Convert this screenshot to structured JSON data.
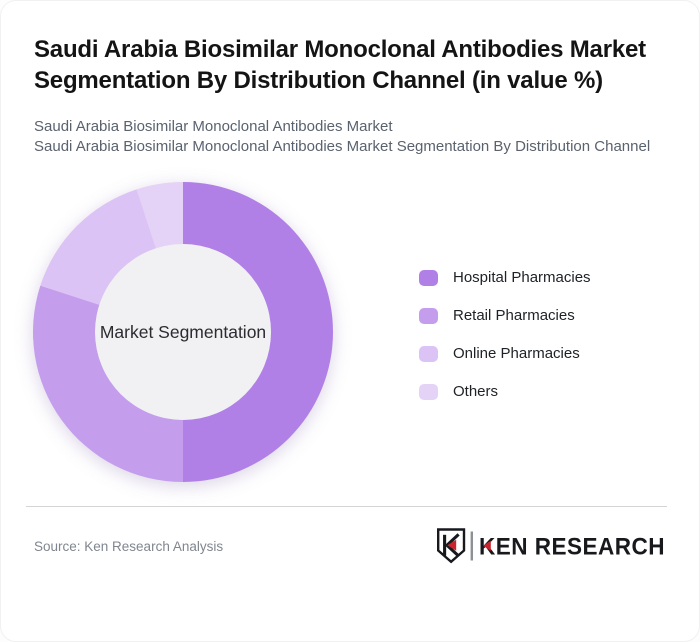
{
  "header": {
    "title": "Saudi Arabia Biosimilar Monoclonal Antibodies Market Segmentation By Distribution Channel (in value %)",
    "subtitle_line1": "Saudi Arabia Biosimilar Monoclonal Antibodies Market",
    "subtitle_line2": "Saudi Arabia Biosimilar Monoclonal Antibodies Market Segmentation By Distribution Channel"
  },
  "chart_data": {
    "type": "pie",
    "variant": "donut",
    "title": "Saudi Arabia Biosimilar Monoclonal Antibodies Market Segmentation By Distribution Channel (in value %)",
    "center_label": "Market Segmentation",
    "categories": [
      "Hospital Pharmacies",
      "Retail Pharmacies",
      "Online Pharmacies",
      "Others"
    ],
    "values": [
      50,
      30,
      15,
      5
    ],
    "unit": "value %",
    "colors": [
      "#b180e7",
      "#c59ded",
      "#dcc3f5",
      "#e4d3f7"
    ],
    "start_angle_deg": 0,
    "direction": "clockwise",
    "inner_radius_ratio": 0.585,
    "center_fill": "#f1f1f3",
    "legend_position": "right",
    "data_labels": "none"
  },
  "footer": {
    "source": "Source: Ken Research Analysis",
    "logo_brand": "KEN RESEARCH",
    "logo_red": "#c9242b",
    "logo_dark": "#17191d"
  }
}
